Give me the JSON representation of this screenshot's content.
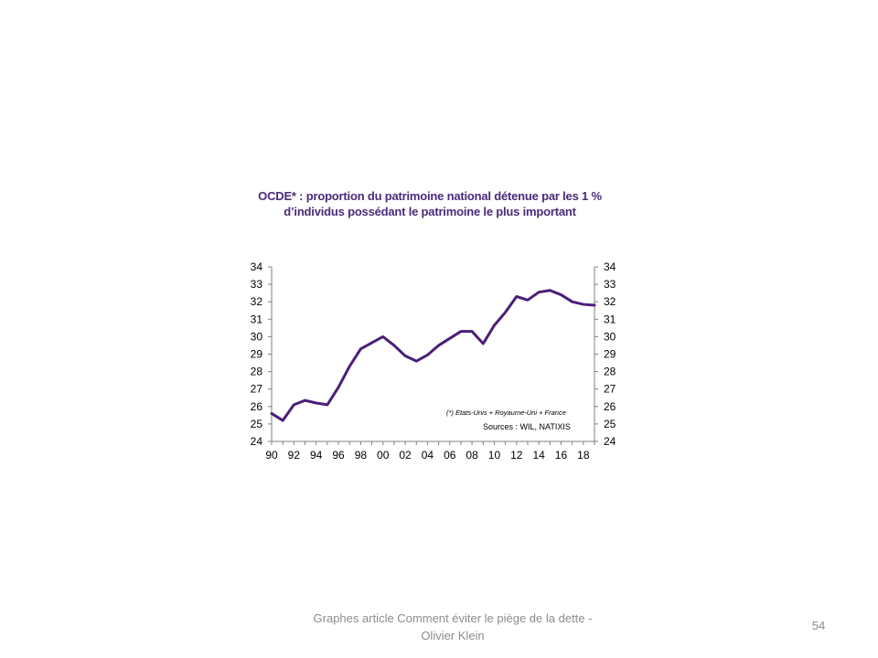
{
  "slide": {
    "footer": "Graphes article Comment  éviter le piège de la dette - Olivier Klein",
    "page_number": "54"
  },
  "chart_data": {
    "type": "line",
    "title": "OCDE* : proportion du patrimoine national détenue par les 1 % d’individus possédant le patrimoine le plus important",
    "note": "(*) Etats-Unis + Royaume-Uni + France",
    "source": "Sources  : WIL, NATIXIS",
    "xlabel": "",
    "ylabel": "",
    "ylim": [
      24,
      34
    ],
    "xlim": [
      1990,
      2019
    ],
    "y_ticks": [
      "24",
      "25",
      "26",
      "27",
      "28",
      "29",
      "30",
      "31",
      "32",
      "33",
      "34"
    ],
    "x_ticks": [
      {
        "x": 1990,
        "label": "90"
      },
      {
        "x": 1992,
        "label": "92"
      },
      {
        "x": 1994,
        "label": "94"
      },
      {
        "x": 1996,
        "label": "96"
      },
      {
        "x": 1998,
        "label": "98"
      },
      {
        "x": 2000,
        "label": "00"
      },
      {
        "x": 2002,
        "label": "02"
      },
      {
        "x": 2004,
        "label": "04"
      },
      {
        "x": 2006,
        "label": "06"
      },
      {
        "x": 2008,
        "label": "08"
      },
      {
        "x": 2010,
        "label": "10"
      },
      {
        "x": 2012,
        "label": "12"
      },
      {
        "x": 2014,
        "label": "14"
      },
      {
        "x": 2016,
        "label": "16"
      },
      {
        "x": 2018,
        "label": "18"
      }
    ],
    "grid": false,
    "dual_y_axis": true,
    "line_color": "#4b1f78",
    "series": [
      {
        "x": [
          1990,
          1991,
          1992,
          1993,
          1994,
          1995,
          1996,
          1997,
          1998,
          1999,
          2000,
          2001,
          2002,
          2003,
          2004,
          2005,
          2006,
          2007,
          2008,
          2009,
          2010,
          2011,
          2012,
          2013,
          2014,
          2015,
          2016,
          2017,
          2018,
          2019
        ],
        "values": [
          25.6,
          25.2,
          26.1,
          26.35,
          26.2,
          26.1,
          27.1,
          28.3,
          29.3,
          29.65,
          30.0,
          29.5,
          28.9,
          28.6,
          28.95,
          29.5,
          29.9,
          30.3,
          30.3,
          29.6,
          30.65,
          31.4,
          32.3,
          32.1,
          32.55,
          32.65,
          32.4,
          32.0,
          31.85,
          31.8
        ]
      }
    ]
  }
}
